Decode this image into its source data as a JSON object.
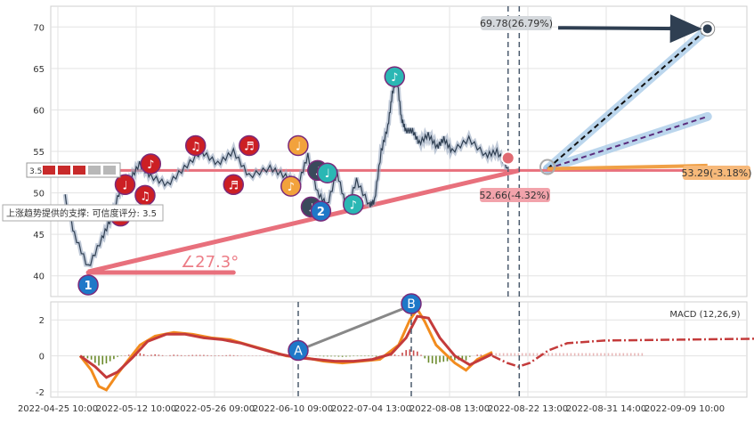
{
  "chart_data": [
    {
      "type": "line",
      "panel": "price",
      "y_ticks": [
        40,
        45,
        50,
        55,
        60,
        65,
        70
      ],
      "ylim": [
        37.5,
        72.5
      ],
      "price_series": [
        {
          "date": "2022-04-27",
          "value": 49.5
        },
        {
          "date": "2022-04-29",
          "value": 45.0
        },
        {
          "date": "2022-05-02",
          "value": 41.0
        },
        {
          "date": "2022-05-05",
          "value": 44.5
        },
        {
          "date": "2022-05-07",
          "value": 47.0
        },
        {
          "date": "2022-05-09",
          "value": 50.5
        },
        {
          "date": "2022-05-11",
          "value": 51.5
        },
        {
          "date": "2022-05-13",
          "value": 53.5
        },
        {
          "date": "2022-05-15",
          "value": 52.0
        },
        {
          "date": "2022-05-18",
          "value": 51.0
        },
        {
          "date": "2022-05-21",
          "value": 53.0
        },
        {
          "date": "2022-05-24",
          "value": 55.0
        },
        {
          "date": "2022-05-27",
          "value": 53.5
        },
        {
          "date": "2022-05-30",
          "value": 55.0
        },
        {
          "date": "2022-06-02",
          "value": 52.0
        },
        {
          "date": "2022-06-06",
          "value": 53.0
        },
        {
          "date": "2022-06-09",
          "value": 52.0
        },
        {
          "date": "2022-06-12",
          "value": 51.0
        },
        {
          "date": "2022-06-15",
          "value": 54.5
        },
        {
          "date": "2022-06-18",
          "value": 50.0
        },
        {
          "date": "2022-06-21",
          "value": 48.5
        },
        {
          "date": "2022-06-24",
          "value": 52.5
        },
        {
          "date": "2022-06-27",
          "value": 48.0
        },
        {
          "date": "2022-06-30",
          "value": 51.5
        },
        {
          "date": "2022-07-04",
          "value": 48.5
        },
        {
          "date": "2022-07-06",
          "value": 49.0
        },
        {
          "date": "2022-07-09",
          "value": 55.0
        },
        {
          "date": "2022-07-12",
          "value": 58.0
        },
        {
          "date": "2022-07-14",
          "value": 62.0
        },
        {
          "date": "2022-07-16",
          "value": 64.0
        },
        {
          "date": "2022-07-18",
          "value": 59.0
        },
        {
          "date": "2022-07-20",
          "value": 57.5
        },
        {
          "date": "2022-07-23",
          "value": 57.5
        },
        {
          "date": "2022-07-26",
          "value": 56.0
        },
        {
          "date": "2022-07-30",
          "value": 57.0
        },
        {
          "date": "2022-08-03",
          "value": 55.5
        },
        {
          "date": "2022-08-06",
          "value": 56.5
        },
        {
          "date": "2022-08-09",
          "value": 55.0
        },
        {
          "date": "2022-08-12",
          "value": 56.5
        },
        {
          "date": "2022-08-15",
          "value": 54.5
        },
        {
          "date": "2022-08-17",
          "value": 55.0
        },
        {
          "date": "2022-08-19",
          "value": 53.0
        }
      ],
      "reference_lines": [
        {
          "kind": "resistance",
          "y": 52.7,
          "color": "#e8707c"
        },
        {
          "kind": "support-trend",
          "from": {
            "date": "2022-05-02",
            "value": 40.5
          },
          "to": {
            "date": "2022-08-21",
            "value": 52.7
          },
          "color": "#e8707c"
        }
      ],
      "vlines": [
        "2022-08-19",
        "2022-08-21"
      ],
      "forecast_rays": [
        {
          "name": "upper",
          "to": {
            "date": "2022-09-12",
            "value": 69.78
          },
          "style": "dashed-black",
          "band": "#9ec5e6"
        },
        {
          "name": "mid",
          "to": {
            "date": "2022-09-12",
            "value": 59.2
          },
          "style": "dashed-purple",
          "band": "#9ec5e6"
        },
        {
          "name": "lower",
          "to": {
            "date": "2022-09-12",
            "value": 53.29
          },
          "style": "orange-solid"
        }
      ],
      "annotations": {
        "upper_target": "69.78(26.79%)",
        "lower_target": "53.29(-3.18%)",
        "current_support": "52.66(-4.32%)",
        "angle": "∠27.3°",
        "support_note": "上涨趋势提供的支撑: 可信度评分: 3.5",
        "rating_label": "3.5",
        "wave_1": "1",
        "wave_2": "2"
      },
      "markers": [
        {
          "date": "2022-05-02",
          "value": 38.9,
          "color": "#1e78c8",
          "label": "1"
        },
        {
          "date": "2022-05-09",
          "value": 47.2,
          "color": "#cc1f24",
          "label": "♪"
        },
        {
          "date": "2022-05-10",
          "value": 51.0,
          "color": "#cc1f24",
          "label": "♩"
        },
        {
          "date": "2022-05-15",
          "value": 53.5,
          "color": "#cc1f24",
          "label": "♪"
        },
        {
          "date": "2022-05-14",
          "value": 49.7,
          "color": "#cc1f24",
          "label": "♫"
        },
        {
          "date": "2022-05-23",
          "value": 55.7,
          "color": "#cc1f24",
          "label": "♫"
        },
        {
          "date": "2022-05-30",
          "value": 51.0,
          "color": "#cc1f24",
          "label": "♬"
        },
        {
          "date": "2022-06-02",
          "value": 55.7,
          "color": "#cc1f24",
          "label": "♬"
        },
        {
          "date": "2022-06-10",
          "value": 50.8,
          "color": "#f2a23c",
          "label": "♪"
        },
        {
          "date": "2022-06-12",
          "value": 55.7,
          "color": "#f2a23c",
          "label": "♩"
        },
        {
          "date": "2022-06-16",
          "value": 48.3,
          "color": "#3a4a5c",
          "label": "♩"
        },
        {
          "date": "2022-06-18",
          "value": 52.7,
          "color": "#3a4a5c",
          "label": "♩"
        },
        {
          "date": "2022-06-19",
          "value": 47.8,
          "color": "#1e78c8",
          "label": "2"
        },
        {
          "date": "2022-06-21",
          "value": 52.4,
          "color": "#2ab7b4",
          "label": "♩"
        },
        {
          "date": "2022-06-29",
          "value": 48.6,
          "color": "#2ab7b4",
          "label": "♪"
        },
        {
          "date": "2022-07-15",
          "value": 64.0,
          "color": "#2ab7b4",
          "label": "♪"
        }
      ]
    },
    {
      "type": "line",
      "panel": "macd",
      "legend": "MACD (12,26,9)",
      "y_ticks": [
        -2,
        0,
        2
      ],
      "ylim": [
        -2.3,
        3.0
      ],
      "x_ticks": [
        "2022-04-25 10:00",
        "2022-05-12 10:00",
        "2022-05-26 09:00",
        "2022-06-10 09:00",
        "2022-07-04 13:00",
        "2022-08-08 13:00",
        "2022-08-22 13:00",
        "2022-08-31 14:00",
        "2022-09-09 10:00"
      ],
      "series": [
        {
          "color": "#f28c1e",
          "values": [
            [
              0,
              0.0
            ],
            [
              3,
              -0.8
            ],
            [
              5,
              -1.7
            ],
            [
              7,
              -1.9
            ],
            [
              10,
              -1.0
            ],
            [
              13,
              -0.2
            ],
            [
              16,
              0.6
            ],
            [
              20,
              1.1
            ],
            [
              25,
              1.3
            ],
            [
              30,
              1.2
            ],
            [
              35,
              1.0
            ],
            [
              40,
              0.9
            ],
            [
              45,
              0.6
            ],
            [
              50,
              0.3
            ],
            [
              55,
              0.0
            ],
            [
              60,
              -0.1
            ],
            [
              65,
              -0.3
            ],
            [
              70,
              -0.4
            ],
            [
              75,
              -0.3
            ],
            [
              80,
              -0.2
            ],
            [
              85,
              0.6
            ],
            [
              88,
              2.0
            ],
            [
              90,
              2.6
            ],
            [
              92,
              1.9
            ],
            [
              95,
              0.6
            ],
            [
              100,
              -0.4
            ],
            [
              103,
              -0.8
            ],
            [
              106,
              -0.2
            ],
            [
              110,
              0.2
            ]
          ]
        },
        {
          "color": "#c43b3b",
          "values": [
            [
              0,
              0.0
            ],
            [
              4,
              -0.6
            ],
            [
              7,
              -1.2
            ],
            [
              10,
              -0.9
            ],
            [
              14,
              -0.1
            ],
            [
              18,
              0.8
            ],
            [
              23,
              1.2
            ],
            [
              28,
              1.2
            ],
            [
              33,
              1.0
            ],
            [
              38,
              0.9
            ],
            [
              43,
              0.7
            ],
            [
              48,
              0.4
            ],
            [
              53,
              0.1
            ],
            [
              58,
              -0.1
            ],
            [
              63,
              -0.2
            ],
            [
              68,
              -0.3
            ],
            [
              73,
              -0.3
            ],
            [
              78,
              -0.2
            ],
            [
              83,
              0.1
            ],
            [
              87,
              1.0
            ],
            [
              90,
              2.2
            ],
            [
              93,
              2.1
            ],
            [
              96,
              1.0
            ],
            [
              100,
              0.0
            ],
            [
              104,
              -0.5
            ],
            [
              108,
              -0.1
            ],
            [
              110,
              0.1
            ]
          ]
        }
      ],
      "forecast": {
        "color": "#c43b3b",
        "values": [
          [
            110,
            0.0
          ],
          [
            114,
            -0.4
          ],
          [
            117,
            -0.6
          ],
          [
            120,
            -0.4
          ],
          [
            125,
            0.3
          ],
          [
            130,
            0.7
          ],
          [
            140,
            0.85
          ],
          [
            160,
            0.9
          ],
          [
            180,
            0.95
          ],
          [
            200,
            0.95
          ]
        ]
      },
      "points": {
        "A": "A",
        "B": "B"
      },
      "pointA_date": "2022-06-10 09:00",
      "pointB_date": "2022-07-18"
    }
  ]
}
